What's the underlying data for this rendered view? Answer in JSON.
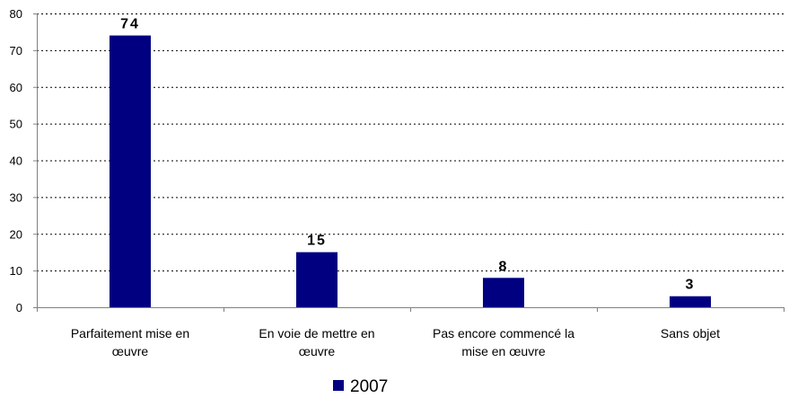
{
  "chart_data": {
    "type": "bar",
    "categories": [
      [
        "Parfaitement mise en",
        "œuvre"
      ],
      [
        "En voie de mettre en",
        "œuvre"
      ],
      [
        "Pas encore commencé la",
        "mise en œuvre"
      ],
      [
        "Sans objet"
      ]
    ],
    "series": [
      {
        "name": "2007",
        "values": [
          74,
          15,
          8,
          3
        ]
      }
    ],
    "data_labels": [
      "74",
      "15",
      "8",
      "3"
    ],
    "ylim": [
      0,
      80
    ],
    "yticks": [
      0,
      10,
      20,
      30,
      40,
      50,
      60,
      70,
      80
    ],
    "grid": true,
    "legend_position": "bottom-center",
    "colors": {
      "bar": "#000080",
      "grid": "#000000",
      "axis": "#808080"
    }
  }
}
